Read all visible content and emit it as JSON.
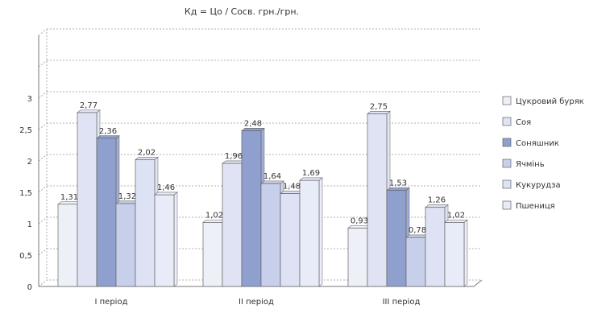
{
  "chart_data": {
    "type": "bar",
    "title": "Кд = Цо / Сосв. грн./грн.",
    "xlabel": "",
    "ylabel": "",
    "ylim": [
      0,
      4
    ],
    "y_ticks": [
      "0",
      "0,5",
      "1",
      "1,5",
      "2",
      "2,5",
      "3"
    ],
    "grid": true,
    "legend_position": "right",
    "categories": [
      "І період",
      "ІІ період",
      "ІІІ період"
    ],
    "series": [
      {
        "name": "Цукровий буряк",
        "values": [
          1.31,
          1.02,
          0.93
        ],
        "labels": [
          "1,31",
          "1,02",
          "0,93"
        ],
        "color": "#eef0f8"
      },
      {
        "name": "Соя",
        "values": [
          2.77,
          1.96,
          2.75
        ],
        "labels": [
          "2,77",
          "1,96",
          "2,75"
        ],
        "color": "#dfe3f3"
      },
      {
        "name": "Соняшник",
        "values": [
          2.36,
          2.48,
          1.53
        ],
        "labels": [
          "2,36",
          "2,48",
          "1,53"
        ],
        "color": "#8fa0cf"
      },
      {
        "name": "Ячмінь",
        "values": [
          1.32,
          1.64,
          0.78
        ],
        "labels": [
          "1,32",
          "1,64",
          "0,78"
        ],
        "color": "#c7cfea"
      },
      {
        "name": "Кукурудза",
        "values": [
          2.02,
          1.48,
          1.26
        ],
        "labels": [
          "2,02",
          "1,48",
          "1,26"
        ],
        "color": "#dde2f4"
      },
      {
        "name": "Пшениця",
        "values": [
          1.46,
          1.69,
          1.02
        ],
        "labels": [
          "1,46",
          "1,69",
          "1,02"
        ],
        "color": "#e8ecf8"
      }
    ]
  }
}
